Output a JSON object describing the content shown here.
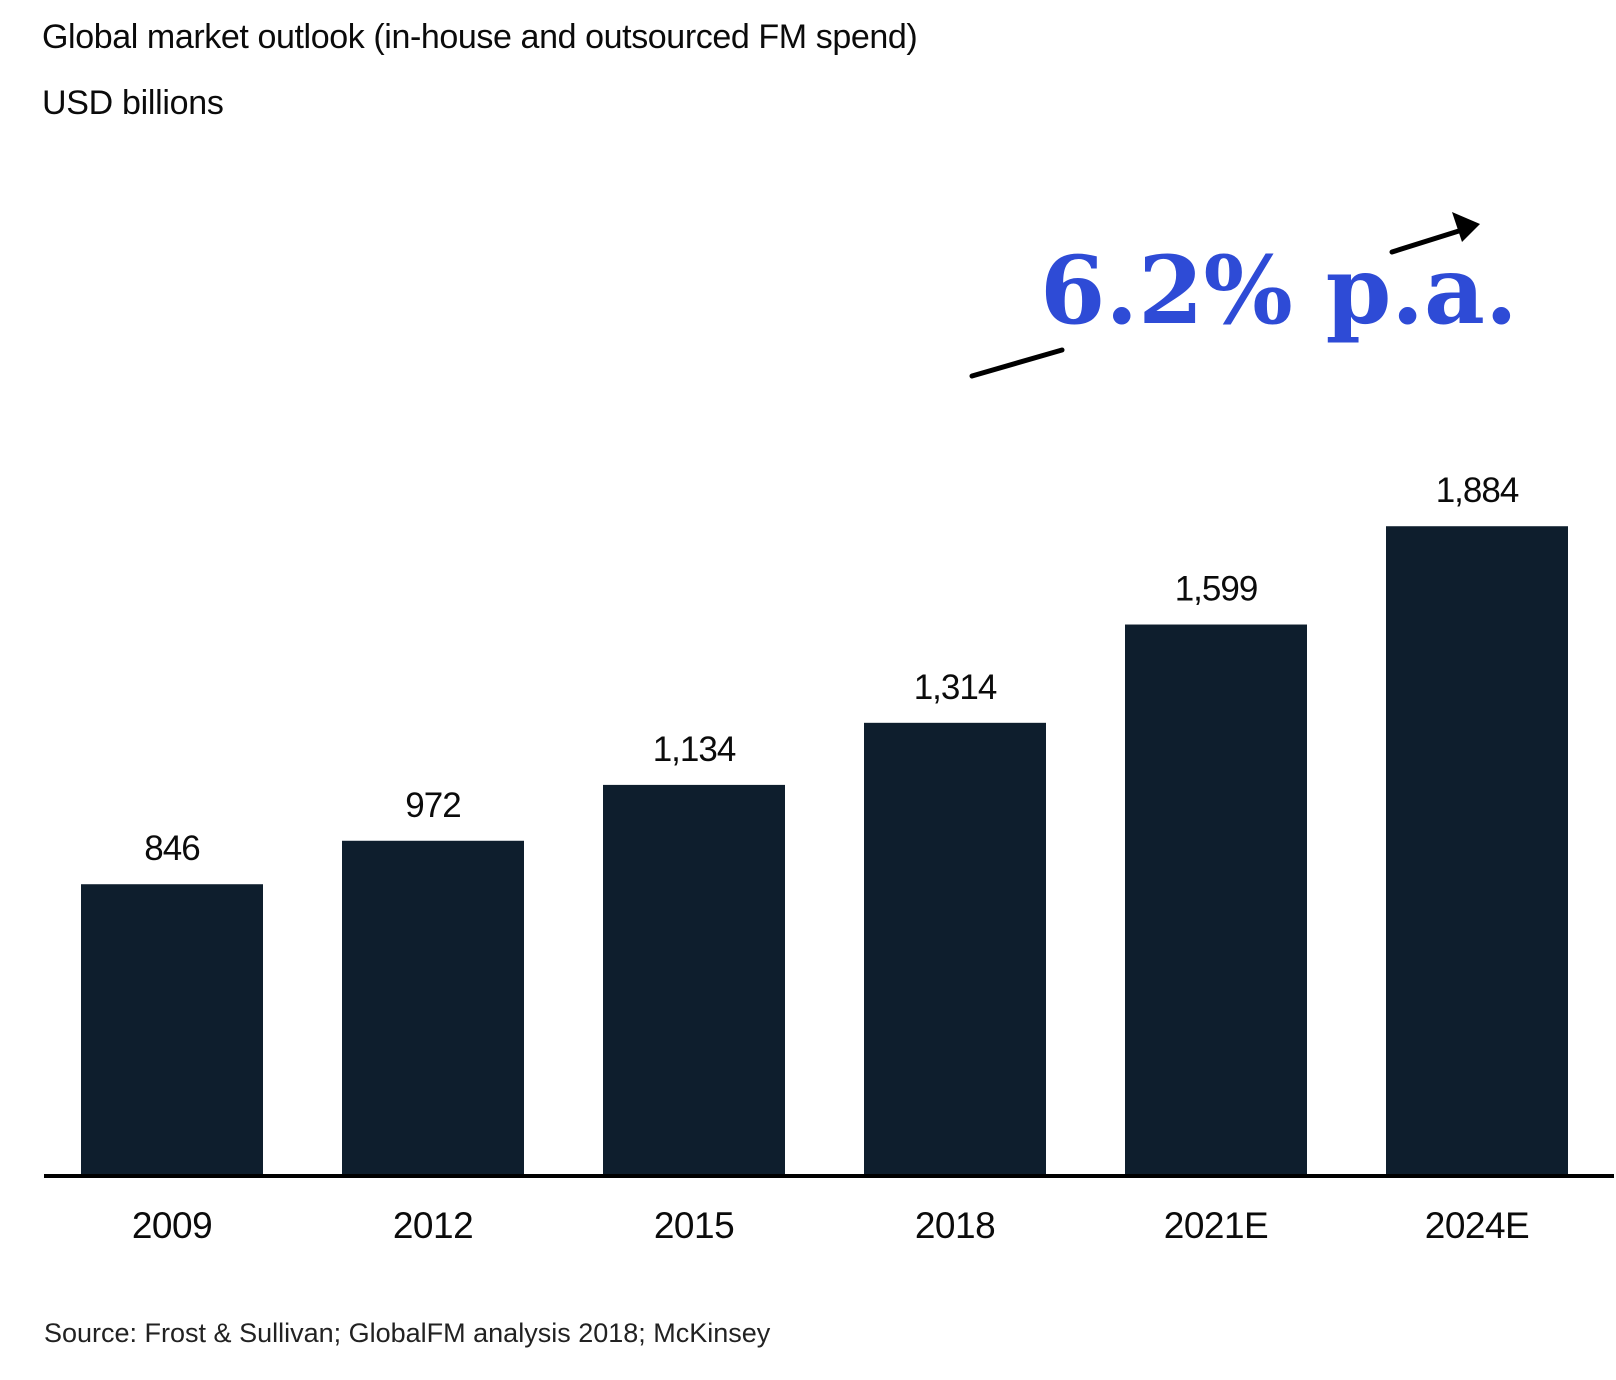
{
  "chart_data": {
    "type": "bar",
    "title": "Global market outlook (in-house and outsourced FM spend)",
    "subtitle": "USD billions",
    "categories": [
      "2009",
      "2012",
      "2015",
      "2018",
      "2021E",
      "2024E"
    ],
    "values": [
      846,
      972,
      1134,
      1314,
      1599,
      1884
    ],
    "value_labels": [
      "846",
      "972",
      "1,134",
      "1,314",
      "1,599",
      "1,884"
    ],
    "xlabel": "",
    "ylabel": "",
    "ylim": [
      0,
      2250
    ],
    "grid": false,
    "bar_color": "#0e1e2d",
    "annotation": {
      "text": "6.2% p.a.",
      "color": "#2e4bd6"
    }
  },
  "source": "Source: Frost & Sullivan; GlobalFM analysis 2018; McKinsey"
}
